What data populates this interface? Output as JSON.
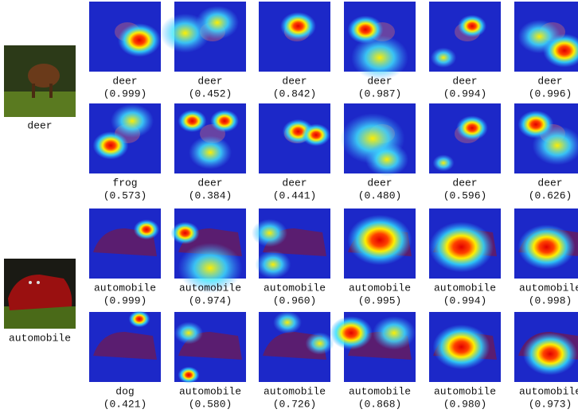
{
  "groups": [
    {
      "image_label": "deer",
      "rows": [
        [
          {
            "label": "deer",
            "score": "(0.999)"
          },
          {
            "label": "deer",
            "score": "(0.452)"
          },
          {
            "label": "deer",
            "score": "(0.842)"
          },
          {
            "label": "deer",
            "score": "(0.987)"
          },
          {
            "label": "deer",
            "score": "(0.994)"
          },
          {
            "label": "deer",
            "score": "(0.996)"
          }
        ],
        [
          {
            "label": "frog",
            "score": "(0.573)"
          },
          {
            "label": "deer",
            "score": "(0.384)"
          },
          {
            "label": "deer",
            "score": "(0.441)"
          },
          {
            "label": "deer",
            "score": "(0.480)"
          },
          {
            "label": "deer",
            "score": "(0.596)"
          },
          {
            "label": "deer",
            "score": "(0.626)"
          }
        ]
      ]
    },
    {
      "image_label": "automobile",
      "rows": [
        [
          {
            "label": "automobile",
            "score": "(0.999)"
          },
          {
            "label": "automobile",
            "score": "(0.974)"
          },
          {
            "label": "automobile",
            "score": "(0.960)"
          },
          {
            "label": "automobile",
            "score": "(0.995)"
          },
          {
            "label": "automobile",
            "score": "(0.994)"
          },
          {
            "label": "automobile",
            "score": "(0.998)"
          }
        ],
        [
          {
            "label": "dog",
            "score": "(0.421)"
          },
          {
            "label": "automobile",
            "score": "(0.580)"
          },
          {
            "label": "automobile",
            "score": "(0.726)"
          },
          {
            "label": "automobile",
            "score": "(0.868)"
          },
          {
            "label": "automobile",
            "score": "(0.980)"
          },
          {
            "label": "automobile",
            "score": "(0.973)"
          }
        ]
      ]
    }
  ]
}
